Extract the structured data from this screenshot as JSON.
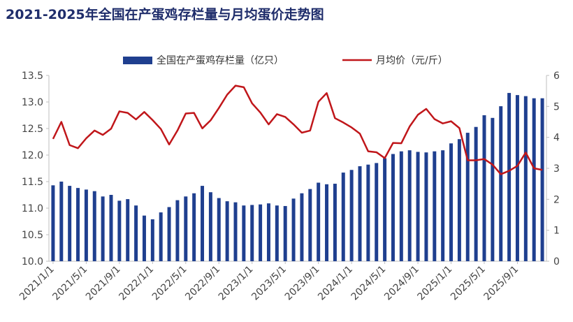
{
  "chart_data": {
    "type": "bar+line",
    "title": "2021-2025年全国在产蛋鸡存栏量与月均蛋价走势图",
    "legend": [
      "全国在产蛋鸡存栏量（亿只）",
      "月均价（元/斤）"
    ],
    "legend_position": "top",
    "grid": false,
    "y_left": {
      "min": 10.0,
      "max": 13.5,
      "ticks": [
        "10.0",
        "10.5",
        "11.0",
        "11.5",
        "12.0",
        "12.5",
        "13.0",
        "13.5"
      ]
    },
    "y_right": {
      "min": 0,
      "max": 6,
      "ticks": [
        "0",
        "1",
        "2",
        "3",
        "4",
        "5",
        "6"
      ]
    },
    "x_tick_labels": [
      "2021/1/1",
      "2021/5/1",
      "2021/9/1",
      "2022/1/1",
      "2022/5/1",
      "2022/9/1",
      "2023/1/1",
      "2023/5/1",
      "2023/9/1",
      "2024/1/1",
      "2024/5/1",
      "2024/9/1",
      "2025/1/1",
      "2025/5/1",
      "2025/9/1"
    ],
    "categories": [
      "2021/1",
      "2021/2",
      "2021/3",
      "2021/4",
      "2021/5",
      "2021/6",
      "2021/7",
      "2021/8",
      "2021/9",
      "2021/10",
      "2021/11",
      "2021/12",
      "2022/1",
      "2022/2",
      "2022/3",
      "2022/4",
      "2022/5",
      "2022/6",
      "2022/7",
      "2022/8",
      "2022/9",
      "2022/10",
      "2022/11",
      "2022/12",
      "2023/1",
      "2023/2",
      "2023/3",
      "2023/4",
      "2023/5",
      "2023/6",
      "2023/7",
      "2023/8",
      "2023/9",
      "2023/10",
      "2023/11",
      "2023/12",
      "2024/1",
      "2024/2",
      "2024/3",
      "2024/4",
      "2024/5",
      "2024/6",
      "2024/7",
      "2024/8",
      "2024/9",
      "2024/10",
      "2024/11",
      "2024/12",
      "2025/1",
      "2025/2",
      "2025/3",
      "2025/4",
      "2025/5",
      "2025/6",
      "2025/7",
      "2025/8",
      "2025/9",
      "2025/10",
      "2025/11",
      "2025/12"
    ],
    "series": [
      {
        "name": "全国在产蛋鸡存栏量（亿只）",
        "type": "bar",
        "axis": "left",
        "color": "#1f3f8f",
        "values": [
          11.43,
          11.5,
          11.42,
          11.38,
          11.35,
          11.32,
          11.22,
          11.25,
          11.14,
          11.17,
          11.05,
          10.86,
          10.79,
          10.92,
          11.02,
          11.15,
          11.22,
          11.28,
          11.42,
          11.3,
          11.19,
          11.13,
          11.11,
          11.05,
          11.06,
          11.07,
          11.09,
          11.05,
          11.04,
          11.18,
          11.28,
          11.36,
          11.48,
          11.45,
          11.46,
          11.67,
          11.72,
          11.79,
          11.82,
          11.85,
          11.94,
          12.02,
          12.07,
          12.09,
          12.06,
          12.05,
          12.07,
          12.09,
          12.22,
          12.3,
          12.42,
          12.53,
          12.75,
          12.7,
          12.92,
          13.17,
          13.13,
          13.11,
          13.07,
          13.07
        ]
      },
      {
        "name": "月均价（元/斤）",
        "type": "line",
        "axis": "right",
        "color": "#c0161a",
        "values": [
          3.95,
          4.5,
          3.75,
          3.65,
          3.97,
          4.22,
          4.08,
          4.28,
          4.84,
          4.79,
          4.58,
          4.82,
          4.56,
          4.27,
          3.77,
          4.22,
          4.77,
          4.79,
          4.29,
          4.55,
          4.95,
          5.38,
          5.67,
          5.62,
          5.1,
          4.8,
          4.42,
          4.75,
          4.66,
          4.42,
          4.15,
          4.22,
          5.15,
          5.43,
          4.62,
          4.48,
          4.32,
          4.12,
          3.55,
          3.52,
          3.33,
          3.82,
          3.81,
          4.35,
          4.73,
          4.92,
          4.59,
          4.45,
          4.52,
          4.3,
          3.26,
          3.26,
          3.3,
          3.12,
          2.81,
          2.92,
          3.08,
          3.51,
          3.0,
          2.95
        ]
      }
    ]
  }
}
